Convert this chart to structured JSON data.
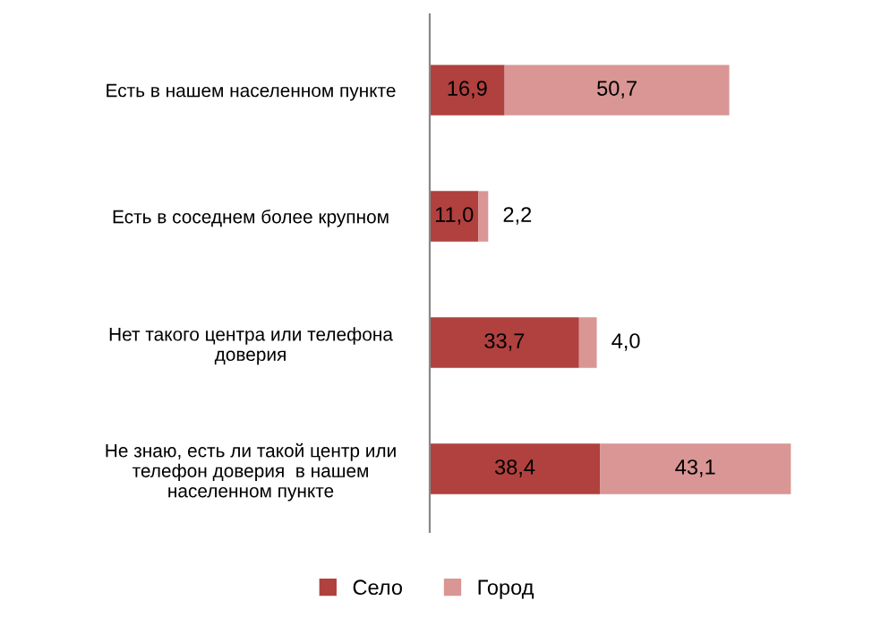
{
  "chart_data": {
    "type": "bar",
    "orientation": "horizontal",
    "stacked": true,
    "legend": "bottom",
    "grid": false,
    "categories": [
      "Есть в нашем населенном пункте",
      "Есть в соседнем более крупном",
      "Нет такого центра или телефона\nдоверия",
      "Не знаю, есть ли такой центр или\nтелефон доверия  в нашем\nнаселенном пункте"
    ],
    "series": [
      {
        "name": "Село",
        "color": "#b0413e",
        "values": [
          16.9,
          11.0,
          33.7,
          38.4
        ],
        "value_labels": [
          "16,9",
          "11,0",
          "33,7",
          "38,4"
        ]
      },
      {
        "name": "Город",
        "color": "#d99694",
        "values": [
          50.7,
          2.2,
          4.0,
          43.1
        ],
        "value_labels": [
          "50,7",
          "2,2",
          "4,0",
          "43,1"
        ]
      }
    ]
  }
}
